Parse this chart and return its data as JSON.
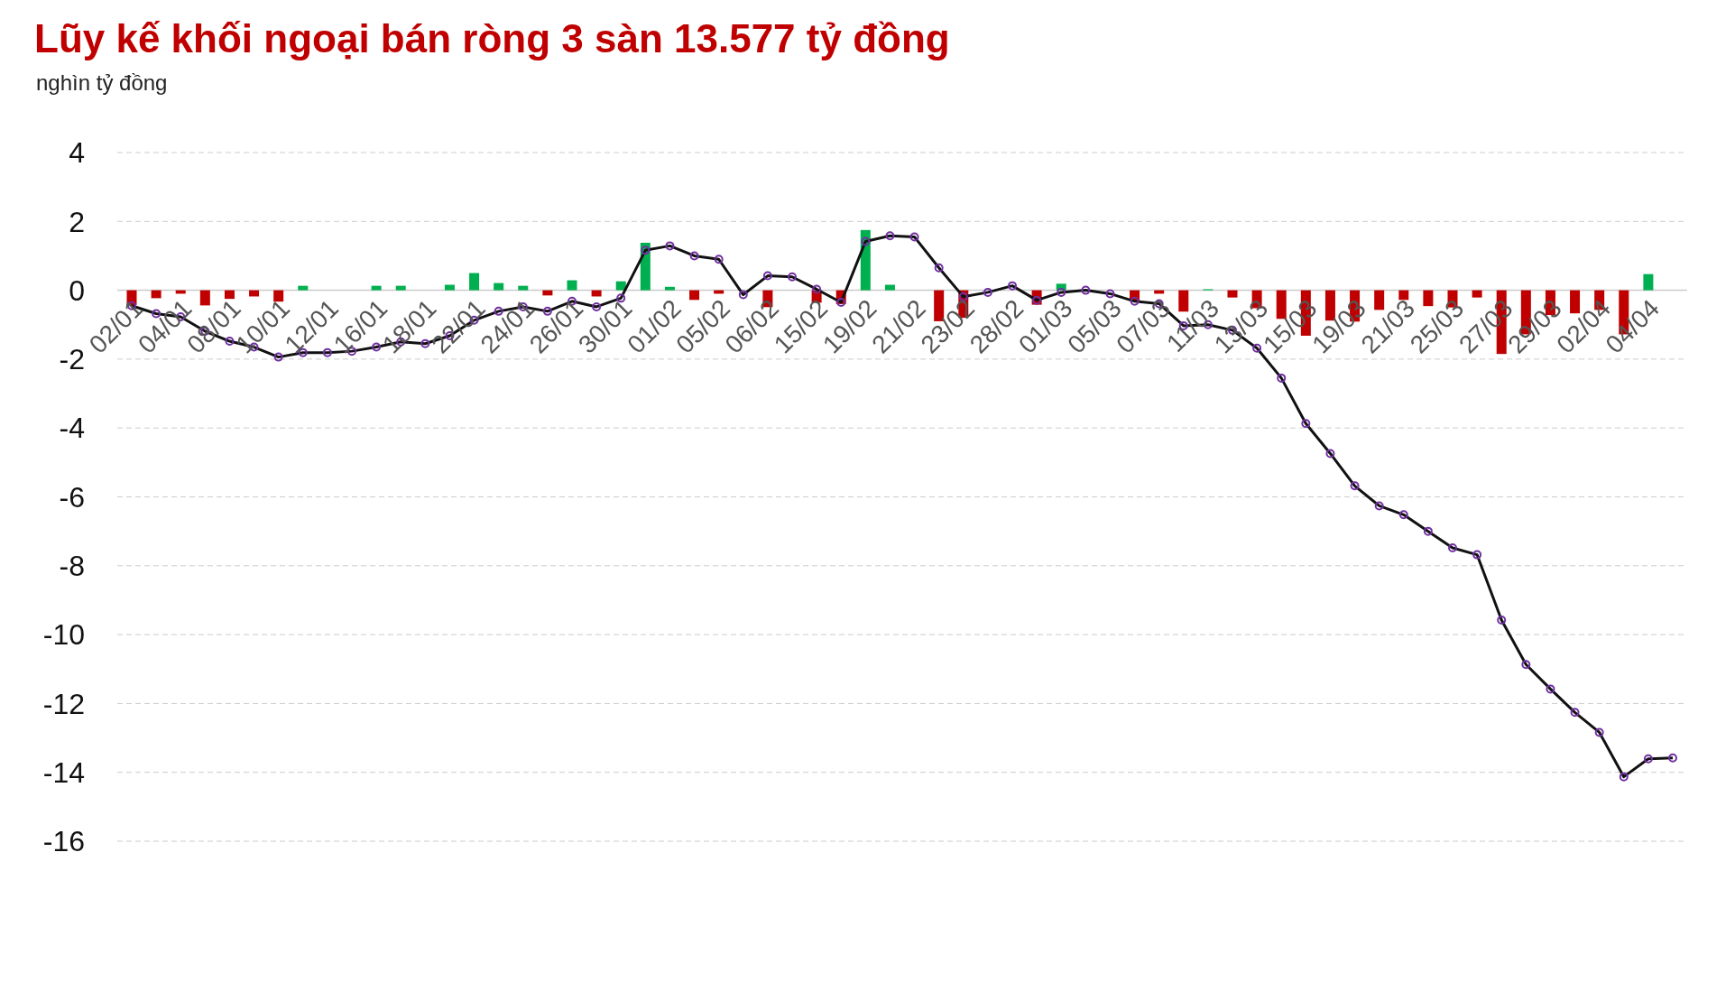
{
  "chart_data": {
    "type": "bar",
    "title": "Lũy kế khối ngoại bán ròng 3 sàn 13.577 tỷ đồng",
    "subtitle": "nghìn tỷ đồng",
    "categories": [
      "02/01",
      null,
      "04/01",
      null,
      "08/01",
      null,
      "10/01",
      null,
      "12/01",
      null,
      "16/01",
      null,
      "18/01",
      null,
      "22/01",
      null,
      "24/01",
      null,
      "26/01",
      null,
      "30/01",
      null,
      "01/02",
      null,
      "05/02",
      null,
      "06/02",
      null,
      "15/02",
      null,
      "19/02",
      null,
      "21/02",
      null,
      "23/02",
      null,
      "28/02",
      null,
      "01/03",
      null,
      "05/03",
      null,
      "07/03",
      null,
      "11/03",
      null,
      "13/03",
      null,
      "15/03",
      null,
      "19/03",
      null,
      "21/03",
      null,
      "25/03",
      null,
      "27/03",
      null,
      "29/03",
      null,
      "02/04",
      null,
      "04/04",
      null
    ],
    "series": [
      {
        "colors": [
          "#c00000",
          "#c00000",
          "#c00000",
          "#c00000",
          "#c00000",
          "#c00000",
          "#c00000",
          "#00b050",
          "#00b050",
          "#00b050",
          "#00b050",
          "#00b050",
          "#00b050",
          "#00b050",
          "#00b050",
          "#00b050",
          "#00b050",
          "#c00000",
          "#00b050",
          "#c00000",
          "#00b050",
          "#00b050",
          "#00b050",
          "#c00000",
          "#c00000",
          "#00b050",
          "#c00000",
          "#00b050",
          "#c00000",
          "#c00000",
          "#00b050",
          "#00b050",
          "#00b050",
          "#c00000",
          "#c00000",
          "#00b050",
          "#00b050",
          "#c00000",
          "#00b050",
          "#00b050",
          "#00b050",
          "#c00000",
          "#c00000",
          "#c00000",
          "#00b050",
          "#c00000",
          "#c00000",
          "#c00000",
          "#c00000",
          "#c00000",
          "#c00000",
          "#c00000",
          "#c00000",
          "#c00000",
          "#c00000",
          "#c00000",
          "#c00000",
          "#c00000",
          "#c00000",
          "#c00000",
          "#c00000",
          "#c00000",
          "#00b050",
          "#00b050"
        ],
        "values": [
          -0.43,
          -0.23,
          -0.1,
          -0.44,
          -0.25,
          -0.18,
          -0.33,
          0.13,
          0,
          0,
          0.13,
          0.13,
          0,
          0.16,
          0.5,
          0.21,
          0.13,
          -0.15,
          0.29,
          -0.18,
          0.26,
          1.38,
          0.1,
          -0.28,
          -0.1,
          0,
          -0.49,
          0,
          -0.36,
          -0.4,
          1.75,
          0.16,
          0,
          -0.9,
          -0.8,
          0,
          0,
          -0.42,
          0.19,
          0,
          0,
          -0.3,
          -0.1,
          -0.62,
          0.03,
          -0.21,
          -0.52,
          -0.83,
          -1.32,
          -0.88,
          -0.91,
          -0.57,
          -0.28,
          -0.46,
          -0.5,
          -0.21,
          -1.85,
          -1.28,
          -0.72,
          -0.67,
          -0.57,
          -1.28,
          0.47,
          0
        ]
      },
      {
        "type": "line",
        "color": "#111111",
        "marker": "circle",
        "values": [
          -0.45,
          -0.68,
          -0.77,
          -1.19,
          -1.48,
          -1.65,
          -1.94,
          -1.81,
          -1.81,
          -1.77,
          -1.65,
          -1.5,
          -1.55,
          -1.32,
          -0.87,
          -0.61,
          -0.48,
          -0.61,
          -0.32,
          -0.48,
          -0.23,
          1.16,
          1.29,
          1.0,
          0.9,
          -0.13,
          0.42,
          0.39,
          0.03,
          -0.35,
          1.42,
          1.58,
          1.55,
          0.65,
          -0.19,
          -0.06,
          0.13,
          -0.29,
          -0.06,
          0,
          -0.1,
          -0.32,
          -0.39,
          -1.03,
          -1.0,
          -1.16,
          -1.68,
          -2.55,
          -3.87,
          -4.74,
          -5.68,
          -6.26,
          -6.52,
          -7.0,
          -7.48,
          -7.68,
          -9.58,
          -10.87,
          -11.58,
          -12.26,
          -12.84,
          -14.13,
          -13.61,
          -13.58
        ]
      }
    ],
    "ylim": [
      -16,
      4
    ],
    "yticks": [
      -16,
      -14,
      -12,
      -10,
      -8,
      -6,
      -4,
      -2,
      0,
      2,
      4
    ],
    "grid": "y"
  }
}
